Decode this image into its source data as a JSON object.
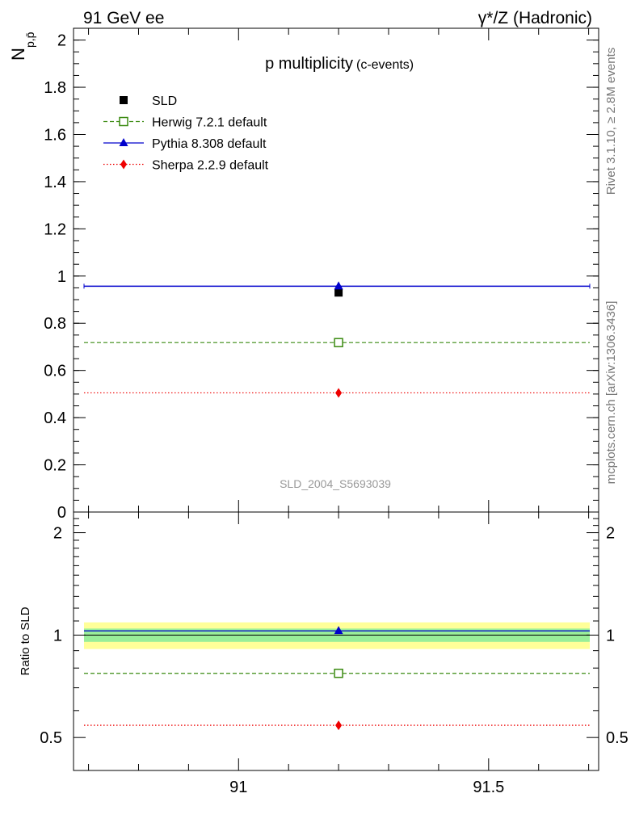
{
  "header": {
    "left": "91 GeV ee",
    "right": "γ*/Z (Hadronic)"
  },
  "side_text": {
    "rivet": "Rivet 3.1.10, ≥ 2.8M events",
    "mcplots": "mcplots.cern.ch [arXiv:1306.3436]"
  },
  "colors": {
    "SLD": "#000000",
    "Herwig": "#3a8a10",
    "Pythia": "#0000cc",
    "Sherpa": "#ee0000",
    "band_inner": "#99ee99",
    "band_outer": "#ffff99"
  },
  "chart_data": [
    {
      "type": "line",
      "title": "p multiplicity",
      "subtitle": "(c-events)",
      "ylabel": "N",
      "ylabel_sub": "p,p̄",
      "watermark": "SLD_2004_S5693039",
      "xlim": [
        90.67,
        91.72
      ],
      "ylim": [
        0,
        2.05
      ],
      "yticks": [
        "0",
        "0.2",
        "0.4",
        "0.6",
        "0.8",
        "1",
        "1.2",
        "1.4",
        "1.6",
        "1.8",
        "2"
      ],
      "x": [
        91.2
      ],
      "series": [
        {
          "name": "SLD",
          "values": [
            0.93
          ],
          "marker": "square",
          "style": "none"
        },
        {
          "name": "Herwig 7.2.1 default",
          "values": [
            0.718
          ],
          "marker": "open-square",
          "style": "dashed"
        },
        {
          "name": "Pythia 8.308 default",
          "values": [
            0.957
          ],
          "marker": "triangle",
          "style": "solid"
        },
        {
          "name": "Sherpa 2.2.9 default",
          "values": [
            0.505
          ],
          "marker": "diamond",
          "style": "dotted"
        }
      ],
      "legend": "top-left"
    },
    {
      "type": "line",
      "ylabel": "Ratio to SLD",
      "xlim": [
        90.67,
        91.72
      ],
      "ylim": [
        0.4,
        2.3
      ],
      "log_y": true,
      "yticks": [
        "0.5",
        "1",
        "2"
      ],
      "xticks": [
        "91",
        "91.5"
      ],
      "x": [
        91.2
      ],
      "band_inner": [
        0.955,
        1.045
      ],
      "band_outer": [
        0.91,
        1.09
      ],
      "series": [
        {
          "name": "Herwig 7.2.1 default",
          "values": [
            0.772
          ]
        },
        {
          "name": "Pythia 8.308 default",
          "values": [
            1.029
          ]
        },
        {
          "name": "Sherpa 2.2.9 default",
          "values": [
            0.543
          ]
        }
      ]
    }
  ]
}
